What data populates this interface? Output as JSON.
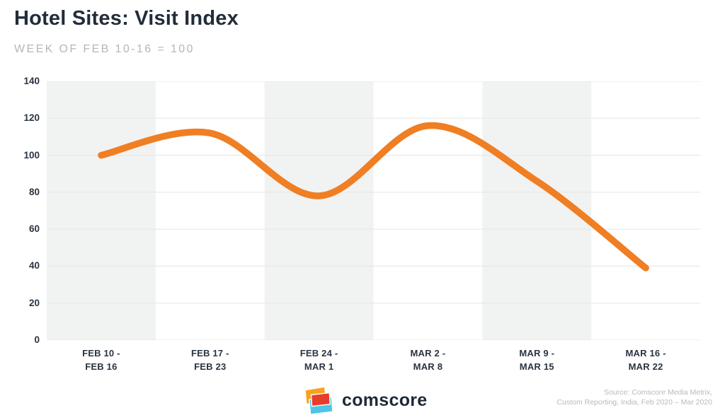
{
  "header": {
    "title": "Hotel Sites: Visit Index",
    "subtitle": "WEEK OF FEB 10-16 = 100"
  },
  "chart_data": {
    "type": "line",
    "title": "Hotel Sites: Visit Index",
    "subtitle": "WEEK OF FEB 10-16 = 100",
    "categories": [
      "FEB 10 -\nFEB 16",
      "FEB 17 -\nFEB 23",
      "FEB 24 -\nMAR 1",
      "MAR 2 -\nMAR 8",
      "MAR 9 -\nMAR 15",
      "MAR 16 -\nMAR 22"
    ],
    "values": [
      100,
      112,
      78,
      116,
      86,
      39
    ],
    "ylim": [
      0,
      140
    ],
    "ytick_step": 20,
    "yticks": [
      0,
      20,
      40,
      60,
      80,
      100,
      120,
      140
    ],
    "xlabel": "",
    "ylabel": "",
    "grid": "horizontal",
    "legend": "none",
    "line_color": "#F07E23",
    "band_color": "#F1F2F2",
    "grid_color": "#E8EAEA",
    "smoothing": "catmull-rom"
  },
  "footer": {
    "brand": "comscore",
    "source_line1": "Source: Comscore Media Metrix,",
    "source_line2": "Custom Reporting, India, Feb 2020 – Mar 2020",
    "logo_colors": {
      "orange": "#FAA21D",
      "red": "#E73D2D",
      "cyan": "#4EC5E9"
    }
  }
}
